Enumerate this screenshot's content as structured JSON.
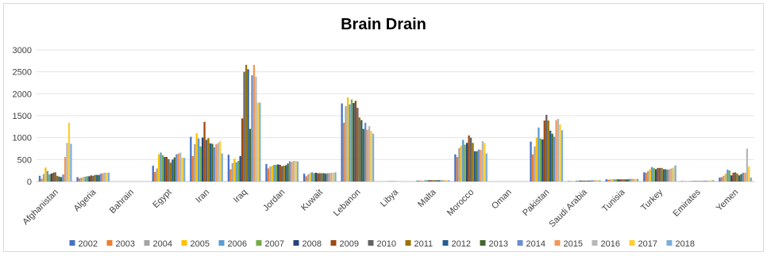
{
  "chart_data": {
    "type": "bar",
    "title": "Brain Drain",
    "xlabel": "",
    "ylabel": "",
    "ylim": [
      0,
      3000
    ],
    "yticks": [
      0,
      500,
      1000,
      1500,
      2000,
      2500,
      3000
    ],
    "grid": true,
    "legend_position": "bottom",
    "categories": [
      "Afghanistan",
      "Algeria",
      "Bahrain",
      "Egypt",
      "Iran",
      "Iraq",
      "Jordan",
      "Kuwait",
      "Lebanon",
      "Libya",
      "Malta",
      "Morocco",
      "Oman",
      "Pakistan",
      "Saudi Arabia",
      "Tunisia",
      "Turkey",
      "Emirates",
      "Yemen"
    ],
    "series": [
      {
        "name": "2002",
        "color": "#4472c4",
        "values": [
          130,
          100,
          0,
          360,
          1020,
          610,
          400,
          180,
          1780,
          0,
          20,
          620,
          0,
          910,
          10,
          50,
          210,
          10,
          90
        ]
      },
      {
        "name": "2003",
        "color": "#ed7d31",
        "values": [
          60,
          70,
          0,
          220,
          580,
          280,
          300,
          120,
          1340,
          0,
          20,
          560,
          0,
          620,
          10,
          40,
          200,
          10,
          100
        ]
      },
      {
        "name": "2004",
        "color": "#a5a5a5",
        "values": [
          170,
          90,
          0,
          300,
          850,
          420,
          340,
          160,
          1720,
          5,
          20,
          760,
          0,
          800,
          10,
          50,
          240,
          10,
          130
        ]
      },
      {
        "name": "2005",
        "color": "#ffc000",
        "values": [
          320,
          100,
          0,
          620,
          1100,
          520,
          360,
          190,
          1920,
          5,
          20,
          820,
          0,
          1000,
          10,
          50,
          280,
          10,
          180
        ]
      },
      {
        "name": "2006",
        "color": "#5b9bd5",
        "values": [
          240,
          110,
          0,
          660,
          980,
          440,
          380,
          210,
          1760,
          5,
          30,
          950,
          0,
          1230,
          20,
          50,
          330,
          10,
          270
        ]
      },
      {
        "name": "2007",
        "color": "#70ad47",
        "values": [
          160,
          120,
          0,
          600,
          800,
          470,
          380,
          190,
          1870,
          5,
          30,
          840,
          0,
          980,
          20,
          50,
          310,
          10,
          250
        ]
      },
      {
        "name": "2008",
        "color": "#264478",
        "values": [
          180,
          120,
          0,
          560,
          1000,
          580,
          390,
          200,
          1790,
          5,
          30,
          880,
          0,
          960,
          20,
          50,
          280,
          10,
          140
        ]
      },
      {
        "name": "2009",
        "color": "#9e480e",
        "values": [
          200,
          140,
          0,
          560,
          1360,
          1440,
          380,
          190,
          1840,
          5,
          30,
          1050,
          0,
          1390,
          20,
          50,
          310,
          10,
          200
        ]
      },
      {
        "name": "2010",
        "color": "#636363",
        "values": [
          210,
          130,
          0,
          510,
          950,
          2500,
          350,
          190,
          1680,
          5,
          30,
          1000,
          0,
          1520,
          20,
          50,
          310,
          10,
          210
        ]
      },
      {
        "name": "2011",
        "color": "#997300",
        "values": [
          130,
          150,
          0,
          430,
          990,
          2660,
          360,
          190,
          1460,
          0,
          30,
          880,
          0,
          1390,
          20,
          50,
          310,
          10,
          180
        ]
      },
      {
        "name": "2012",
        "color": "#255e91",
        "values": [
          110,
          150,
          0,
          500,
          870,
          2560,
          370,
          190,
          1400,
          0,
          30,
          690,
          0,
          1160,
          20,
          50,
          280,
          10,
          140
        ]
      },
      {
        "name": "2013",
        "color": "#43682b",
        "values": [
          100,
          150,
          0,
          550,
          860,
          1200,
          410,
          180,
          1200,
          0,
          30,
          690,
          0,
          1090,
          20,
          50,
          280,
          10,
          170
        ]
      },
      {
        "name": "2014",
        "color": "#698ed0",
        "values": [
          160,
          180,
          0,
          620,
          780,
          2420,
          460,
          190,
          1340,
          0,
          30,
          730,
          0,
          1020,
          30,
          60,
          270,
          20,
          200
        ]
      },
      {
        "name": "2015",
        "color": "#f1975a",
        "values": [
          560,
          190,
          0,
          640,
          850,
          2660,
          450,
          190,
          1180,
          0,
          30,
          720,
          0,
          1400,
          30,
          60,
          280,
          20,
          200
        ]
      },
      {
        "name": "2016",
        "color": "#b7b7b7",
        "values": [
          880,
          200,
          0,
          660,
          880,
          2390,
          470,
          200,
          1260,
          0,
          30,
          920,
          0,
          1430,
          30,
          60,
          300,
          20,
          750
        ]
      },
      {
        "name": "2017",
        "color": "#ffcd33",
        "values": [
          1340,
          200,
          0,
          540,
          920,
          1800,
          470,
          200,
          1150,
          0,
          30,
          880,
          0,
          1300,
          30,
          60,
          320,
          30,
          340
        ]
      },
      {
        "name": "2018",
        "color": "#7cafdd",
        "values": [
          860,
          200,
          0,
          540,
          640,
          1800,
          460,
          210,
          1090,
          0,
          30,
          640,
          0,
          1170,
          30,
          60,
          370,
          30,
          90
        ]
      }
    ]
  }
}
